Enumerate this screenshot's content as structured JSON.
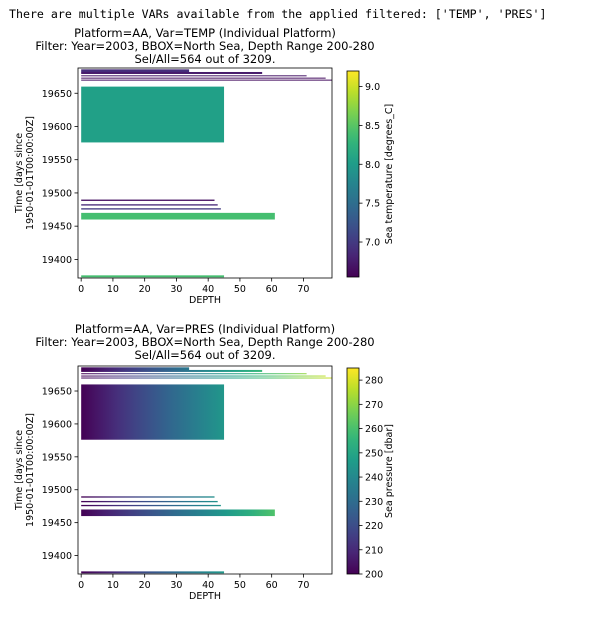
{
  "console_output": "There are multiple VARs available from the applied filtered: ['TEMP', 'PRES']",
  "chart_data": [
    {
      "type": "heatmap",
      "title_lines": [
        "Platform=AA, Var=TEMP (Individual Platform)",
        "Filter: Year=2003, BBOX=North Sea, Depth Range 200-280",
        "Sel/All=564 out of 3209."
      ],
      "xlabel": "DEPTH",
      "ylabel_lines": [
        "Time [days since",
        "1950-01-01T00:00:00Z]"
      ],
      "xlim": [
        -1,
        79
      ],
      "ylim": [
        19372,
        19688
      ],
      "xticks": [
        "0",
        "10",
        "20",
        "30",
        "40",
        "50",
        "60",
        "70"
      ],
      "yticks": [
        "19400",
        "19450",
        "19500",
        "19550",
        "19600",
        "19650"
      ],
      "colorbar": {
        "label": "Sea temperature [degrees_C]",
        "range": [
          6.55,
          9.2
        ],
        "ticks": [
          "7.0",
          "7.5",
          "8.0",
          "8.5",
          "9.0"
        ],
        "colormap": "viridis"
      },
      "profiles": [
        {
          "t0": 19681.5,
          "t1": 19686,
          "depth_max": 34,
          "value": 6.9
        },
        {
          "t0": 19679,
          "t1": 19682,
          "depth_max": 57,
          "value": 6.75
        },
        {
          "t0": 19675.5,
          "t1": 19677,
          "depth_max": 71,
          "value": 6.7
        },
        {
          "t0": 19672,
          "t1": 19673.5,
          "depth_max": 77,
          "value": 6.65
        },
        {
          "t0": 19669,
          "t1": 19670.5,
          "depth_max": 79,
          "value": 6.65
        },
        {
          "t0": 19576,
          "t1": 19660,
          "depth_max": 45,
          "value": 8.05
        },
        {
          "t0": 19488,
          "t1": 19490,
          "depth_max": 42,
          "value": 6.65
        },
        {
          "t0": 19481,
          "t1": 19483,
          "depth_max": 43,
          "value": 6.85
        },
        {
          "t0": 19475,
          "t1": 19477,
          "depth_max": 44,
          "value": 7.0
        },
        {
          "t0": 19460,
          "t1": 19470,
          "depth_max": 61,
          "value": 8.4
        },
        {
          "t0": 19373,
          "t1": 19376,
          "depth_max": 45,
          "value": 8.4
        }
      ]
    },
    {
      "type": "heatmap",
      "title_lines": [
        "Platform=AA, Var=PRES (Individual Platform)",
        "Filter: Year=2003, BBOX=North Sea, Depth Range 200-280",
        "Sel/All=564 out of 3209."
      ],
      "xlabel": "DEPTH",
      "ylabel_lines": [
        "Time [days since",
        "1950-01-01T00:00:00Z]"
      ],
      "xlim": [
        -1,
        79
      ],
      "ylim": [
        19372,
        19688
      ],
      "xticks": [
        "0",
        "10",
        "20",
        "30",
        "40",
        "50",
        "60",
        "70"
      ],
      "yticks": [
        "19400",
        "19450",
        "19500",
        "19550",
        "19600",
        "19650"
      ],
      "colorbar": {
        "label": "Sea pressure [dbar]",
        "range": [
          200,
          285
        ],
        "ticks": [
          "200",
          "210",
          "220",
          "230",
          "240",
          "250",
          "260",
          "270",
          "280"
        ],
        "colormap": "viridis"
      },
      "profiles": [
        {
          "t0": 19681.5,
          "t1": 19686,
          "depth_max": 34,
          "value_start": 200,
          "value_end": 234
        },
        {
          "t0": 19679,
          "t1": 19682,
          "depth_max": 57,
          "value_start": 200,
          "value_end": 257
        },
        {
          "t0": 19675.5,
          "t1": 19677,
          "depth_max": 71,
          "value_start": 200,
          "value_end": 271
        },
        {
          "t0": 19672,
          "t1": 19673.5,
          "depth_max": 77,
          "value_start": 200,
          "value_end": 277
        },
        {
          "t0": 19669,
          "t1": 19670.5,
          "depth_max": 79,
          "value_start": 200,
          "value_end": 279
        },
        {
          "t0": 19576,
          "t1": 19660,
          "depth_max": 45,
          "value_start": 200,
          "value_end": 245
        },
        {
          "t0": 19488,
          "t1": 19490,
          "depth_max": 42,
          "value_start": 200,
          "value_end": 242
        },
        {
          "t0": 19481,
          "t1": 19483,
          "depth_max": 43,
          "value_start": 200,
          "value_end": 243
        },
        {
          "t0": 19475,
          "t1": 19477,
          "depth_max": 44,
          "value_start": 200,
          "value_end": 244
        },
        {
          "t0": 19460,
          "t1": 19470,
          "depth_max": 61,
          "value_start": 200,
          "value_end": 261
        },
        {
          "t0": 19373,
          "t1": 19376,
          "depth_max": 45,
          "value_start": 200,
          "value_end": 245
        }
      ]
    }
  ]
}
